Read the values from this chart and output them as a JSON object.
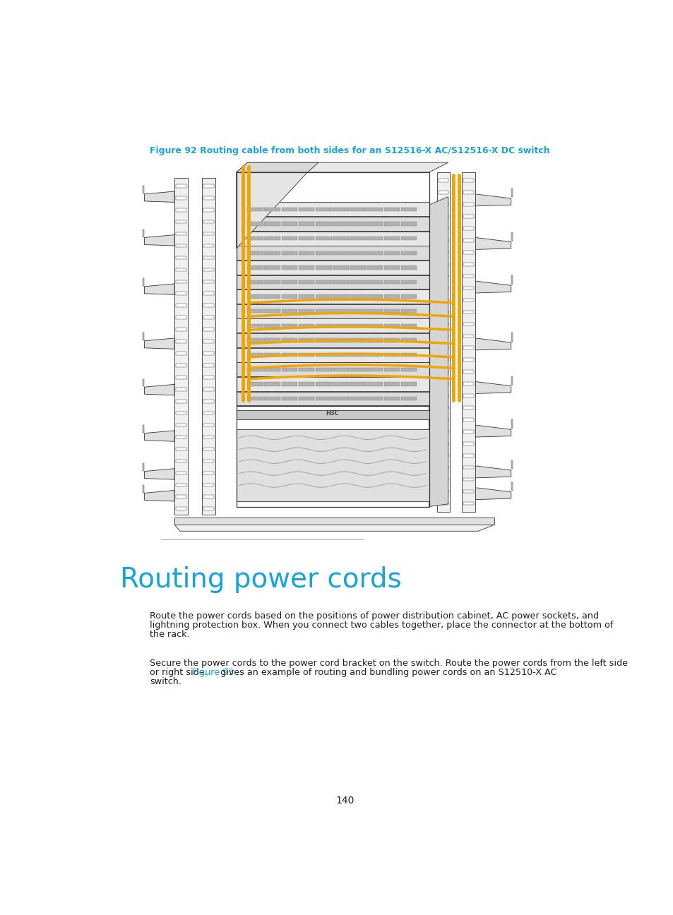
{
  "figure_caption": "Figure 92 Routing cable from both sides for an S12516-X AC/S12516-X DC switch",
  "section_title": "Routing power cords",
  "paragraph1_line1": "Route the power cords based on the positions of power distribution cabinet, AC power sockets, and",
  "paragraph1_line2": "lightning protection box. When you connect two cables together, place the connector at the bottom of",
  "paragraph1_line3": "the rack.",
  "paragraph2_line1": "Secure the power cords to the power cord bracket on the switch. Route the power cords from the left side",
  "paragraph2_line2_pre": "or right side. ",
  "paragraph2_link": "Figure 93",
  "paragraph2_line2_post": " gives an example of routing and bundling power cords on an S12510-X AC",
  "paragraph2_line3": "switch.",
  "page_number": "140",
  "caption_color": "#1aa3d9",
  "section_title_color": "#1aa3d9",
  "link_color": "#1aa3d9",
  "body_color": "#231f20",
  "background_color": "#ffffff",
  "caption_fontsize": 9.0,
  "section_title_fontsize": 28,
  "body_fontsize": 9.2,
  "page_number_fontsize": 10
}
